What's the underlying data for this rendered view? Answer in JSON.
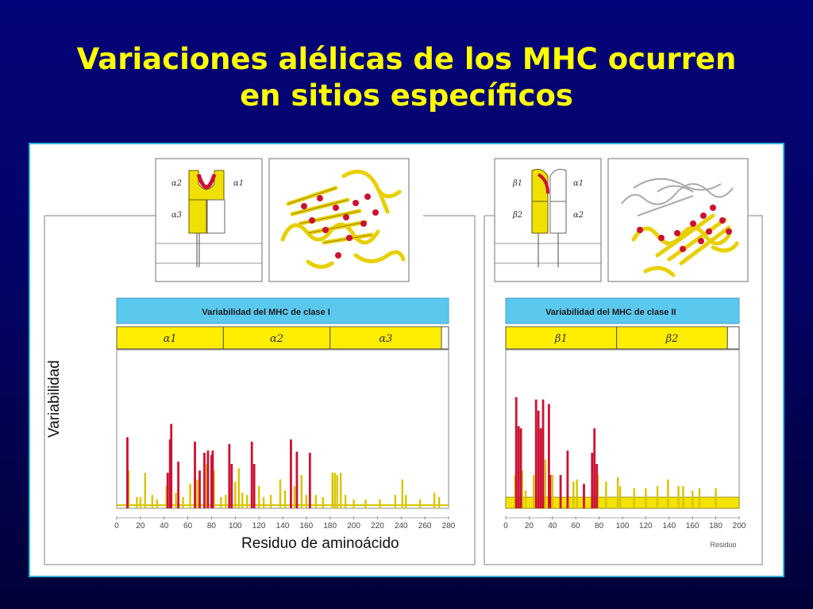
{
  "slide": {
    "title_line1": "Variaciones alélicas de los MHC ocurren",
    "title_line2": "en sitios específicos",
    "ylabel": "Variabilidad",
    "xlabel": "Residuo de aminoácido"
  },
  "colors": {
    "background": "#03036e",
    "title": "#ffff00",
    "header_bar": "#5bc8ee",
    "domain_bar": "#ffee00",
    "polymorphic_bar": "#cc1133",
    "variable_bar": "#d8c400",
    "border": "#33b5d8"
  },
  "schematics": {
    "class1": {
      "labels": [
        "α2",
        "α1",
        "α3"
      ]
    },
    "class2": {
      "labels": [
        "β1",
        "α1",
        "β2",
        "α2"
      ]
    }
  },
  "chart_data": [
    {
      "type": "bar",
      "header": "Variabilidad del MHC de clase I",
      "domains": [
        {
          "label": "α1",
          "start": 0,
          "end": 90
        },
        {
          "label": "α2",
          "start": 90,
          "end": 180
        },
        {
          "label": "α3",
          "start": 180,
          "end": 274
        }
      ],
      "xlim": [
        0,
        280
      ],
      "xticks": [
        "0",
        "20",
        "40",
        "60",
        "80",
        "100",
        "120",
        "140",
        "160",
        "180",
        "200",
        "220",
        "240",
        "260",
        "280"
      ],
      "ylim": [
        0,
        100
      ],
      "red_residues": [
        {
          "x": 9,
          "v": 64
        },
        {
          "x": 43,
          "v": 32
        },
        {
          "x": 45,
          "v": 62
        },
        {
          "x": 46,
          "v": 76
        },
        {
          "x": 52,
          "v": 42
        },
        {
          "x": 66,
          "v": 60
        },
        {
          "x": 70,
          "v": 34
        },
        {
          "x": 74,
          "v": 50
        },
        {
          "x": 77,
          "v": 52
        },
        {
          "x": 80,
          "v": 48
        },
        {
          "x": 81,
          "v": 52
        },
        {
          "x": 95,
          "v": 58
        },
        {
          "x": 97,
          "v": 40
        },
        {
          "x": 114,
          "v": 60
        },
        {
          "x": 116,
          "v": 40
        },
        {
          "x": 147,
          "v": 62
        },
        {
          "x": 152,
          "v": 51
        },
        {
          "x": 163,
          "v": 50
        }
      ],
      "yellow_residues": [
        {
          "x": 10,
          "v": 34
        },
        {
          "x": 17,
          "v": 10
        },
        {
          "x": 20,
          "v": 10
        },
        {
          "x": 24,
          "v": 32
        },
        {
          "x": 30,
          "v": 12
        },
        {
          "x": 34,
          "v": 8
        },
        {
          "x": 42,
          "v": 20
        },
        {
          "x": 50,
          "v": 14
        },
        {
          "x": 56,
          "v": 10
        },
        {
          "x": 62,
          "v": 22
        },
        {
          "x": 68,
          "v": 26
        },
        {
          "x": 76,
          "v": 40
        },
        {
          "x": 82,
          "v": 34
        },
        {
          "x": 88,
          "v": 10
        },
        {
          "x": 92,
          "v": 12
        },
        {
          "x": 100,
          "v": 24
        },
        {
          "x": 103,
          "v": 36
        },
        {
          "x": 106,
          "v": 14
        },
        {
          "x": 110,
          "v": 12
        },
        {
          "x": 120,
          "v": 20
        },
        {
          "x": 124,
          "v": 10
        },
        {
          "x": 130,
          "v": 12
        },
        {
          "x": 138,
          "v": 26
        },
        {
          "x": 142,
          "v": 16
        },
        {
          "x": 150,
          "v": 20
        },
        {
          "x": 156,
          "v": 30
        },
        {
          "x": 160,
          "v": 12
        },
        {
          "x": 168,
          "v": 12
        },
        {
          "x": 174,
          "v": 10
        },
        {
          "x": 182,
          "v": 32
        },
        {
          "x": 184,
          "v": 32
        },
        {
          "x": 186,
          "v": 30
        },
        {
          "x": 189,
          "v": 32
        },
        {
          "x": 193,
          "v": 12
        },
        {
          "x": 200,
          "v": 8
        },
        {
          "x": 210,
          "v": 8
        },
        {
          "x": 222,
          "v": 8
        },
        {
          "x": 235,
          "v": 12
        },
        {
          "x": 241,
          "v": 26
        },
        {
          "x": 244,
          "v": 12
        },
        {
          "x": 256,
          "v": 8
        },
        {
          "x": 268,
          "v": 14
        },
        {
          "x": 272,
          "v": 10
        }
      ]
    },
    {
      "type": "bar",
      "header": "Variabilidad del MHC de clase II",
      "domains": [
        {
          "label": "β1",
          "start": 0,
          "end": 95
        },
        {
          "label": "β2",
          "start": 95,
          "end": 190
        }
      ],
      "xlim": [
        0,
        200
      ],
      "xticks": [
        "0",
        "20",
        "40",
        "60",
        "80",
        "100",
        "120",
        "140",
        "160",
        "180",
        "200"
      ],
      "xlabel": "Residuo",
      "ylim": [
        0,
        100
      ],
      "red_residues": [
        {
          "x": 9,
          "v": 100
        },
        {
          "x": 11,
          "v": 74
        },
        {
          "x": 13,
          "v": 72
        },
        {
          "x": 26,
          "v": 98
        },
        {
          "x": 28,
          "v": 88
        },
        {
          "x": 30,
          "v": 72
        },
        {
          "x": 32,
          "v": 98
        },
        {
          "x": 37,
          "v": 94
        },
        {
          "x": 38,
          "v": 30
        },
        {
          "x": 47,
          "v": 30
        },
        {
          "x": 53,
          "v": 52
        },
        {
          "x": 67,
          "v": 22
        },
        {
          "x": 74,
          "v": 50
        },
        {
          "x": 76,
          "v": 72
        },
        {
          "x": 78,
          "v": 40
        }
      ],
      "yellow_residues": [
        {
          "x": 8,
          "v": 30
        },
        {
          "x": 14,
          "v": 34
        },
        {
          "x": 17,
          "v": 16
        },
        {
          "x": 24,
          "v": 30
        },
        {
          "x": 34,
          "v": 44
        },
        {
          "x": 40,
          "v": 30
        },
        {
          "x": 58,
          "v": 24
        },
        {
          "x": 61,
          "v": 26
        },
        {
          "x": 79,
          "v": 30
        },
        {
          "x": 86,
          "v": 24
        },
        {
          "x": 96,
          "v": 28
        },
        {
          "x": 98,
          "v": 20
        },
        {
          "x": 110,
          "v": 18
        },
        {
          "x": 120,
          "v": 18
        },
        {
          "x": 130,
          "v": 20
        },
        {
          "x": 139,
          "v": 26
        },
        {
          "x": 148,
          "v": 20
        },
        {
          "x": 152,
          "v": 20
        },
        {
          "x": 160,
          "v": 16
        },
        {
          "x": 166,
          "v": 18
        },
        {
          "x": 180,
          "v": 18
        }
      ]
    }
  ]
}
